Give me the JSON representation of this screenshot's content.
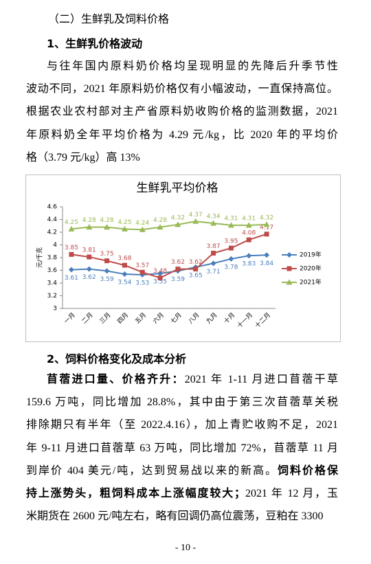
{
  "heading": "（二）生鲜乳及饲料价格",
  "section1": {
    "title": "1、生鲜乳价格波动",
    "paragraph": [
      [
        {
          "text": "与往年国内原料奶价格均呈现明显的先降后升季节性",
          "bold": false
        }
      ],
      [
        {
          "text": "波动不同，2021 年原料奶价格仅有小幅波动，一直保持高位。",
          "bold": false
        }
      ],
      [
        {
          "text": "根据农业农村部对主产省原料奶收购价格的监测数据，2021",
          "bold": false
        }
      ],
      [
        {
          "text": "年原料奶全年平均价格为 4.29 元/kg，比 2020 年的平均价",
          "bold": false
        }
      ],
      [
        {
          "text": "格（3.79 元/kg）高 13%",
          "bold": false
        }
      ]
    ]
  },
  "chart_data": {
    "type": "line",
    "title": "生鲜乳平均价格",
    "y_label": "元/千克",
    "categories": [
      "一月",
      "二月",
      "三月",
      "四月",
      "五月",
      "六月",
      "七月",
      "八月",
      "九月",
      "十月",
      "十一月",
      "十二月"
    ],
    "ylim": [
      3,
      4.6
    ],
    "yticks": [
      3,
      3.2,
      3.4,
      3.6,
      3.8,
      4,
      4.2,
      4.4,
      4.6
    ],
    "legend": "right",
    "series": [
      {
        "name": "2019年",
        "color": "#4a7ebb",
        "marker": "diamond",
        "label_position": "below",
        "values": [
          3.61,
          3.62,
          3.59,
          3.54,
          3.53,
          3.55,
          3.59,
          3.65,
          3.71,
          3.78,
          3.83,
          3.84
        ]
      },
      {
        "name": "2020年",
        "color": "#be4b48",
        "marker": "square",
        "label_position": "above",
        "values": [
          3.85,
          3.81,
          3.75,
          3.68,
          3.57,
          3.48,
          3.62,
          3.62,
          3.87,
          3.95,
          4.08,
          4.17
        ]
      },
      {
        "name": "2021年",
        "color": "#98b954",
        "marker": "triangle",
        "label_position": "above",
        "values": [
          4.25,
          4.28,
          4.28,
          4.25,
          4.24,
          4.28,
          4.32,
          4.37,
          4.34,
          4.31,
          4.31,
          4.32
        ]
      }
    ]
  },
  "section2": {
    "title": "2、饲料价格变化及成本分析",
    "paragraph": [
      [
        {
          "text": "苜蓿进口量、价格齐升：",
          "bold": true
        },
        {
          "text": "2021 年 1-11 月进口苜蓿干草",
          "bold": false
        }
      ],
      [
        {
          "text": "159.6 万吨，同比增加 28.8%，其中由于第三次苜蓿草关税",
          "bold": false
        }
      ],
      [
        {
          "text": "排除期只有半年（至 2022.4.16），加上青贮收购不足，2021",
          "bold": false
        }
      ],
      [
        {
          "text": "年 9-11 月进口苜蓿草 63 万吨，同比增加 72%，苜蓿草 11 月",
          "bold": false
        }
      ],
      [
        {
          "text": "到岸价 404 美元/吨，达到贸易战以来的新高。",
          "bold": false
        },
        {
          "text": "饲料价格保",
          "bold": true
        }
      ],
      [
        {
          "text": "持上涨势头，粗饲料成本上涨幅度较大；",
          "bold": true
        },
        {
          "text": "2021 年 12 月，玉",
          "bold": false
        }
      ],
      [
        {
          "text": "米期货在 2600 元/吨左右，略有回调仍高位震荡，豆粕在 3300",
          "bold": false
        }
      ]
    ]
  },
  "page_number": "- 10 -"
}
